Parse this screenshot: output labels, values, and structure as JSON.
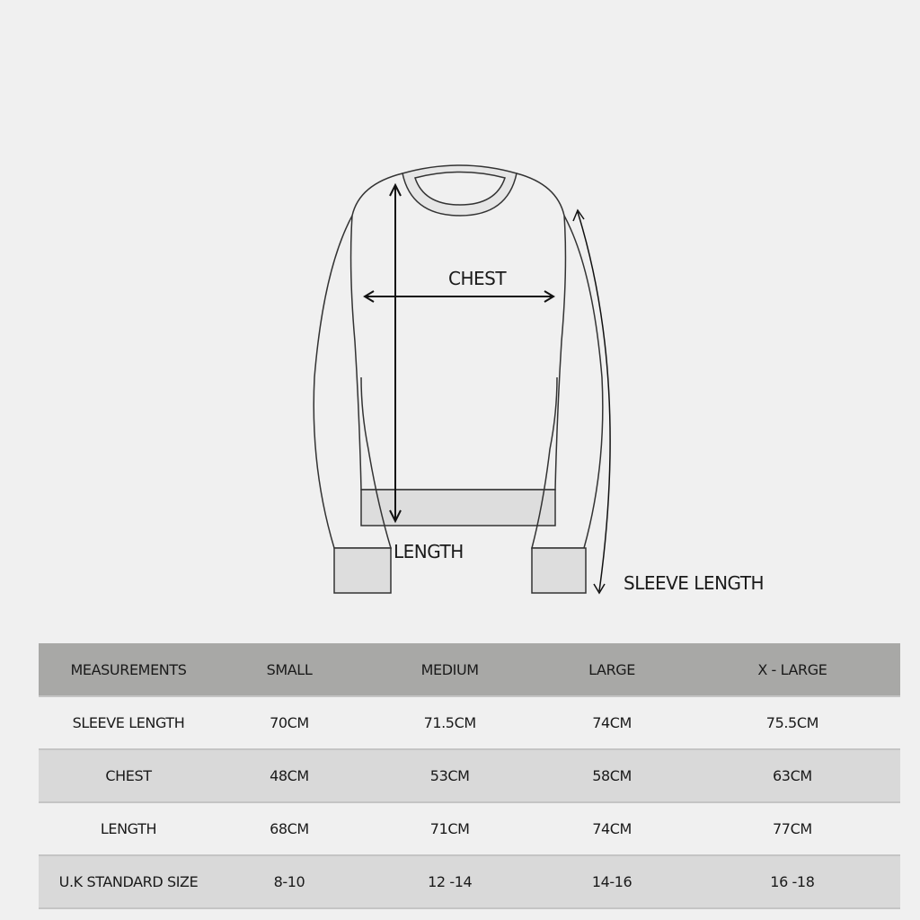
{
  "diagram": {
    "labels": {
      "chest": "CHEST",
      "length": "LENGTH",
      "sleeve_length": "SLEEVE LENGTH"
    }
  },
  "table": {
    "headers": [
      "MEASUREMENTS",
      "SMALL",
      "MEDIUM",
      "LARGE",
      "X - LARGE"
    ],
    "rows": [
      [
        "SLEEVE LENGTH",
        "70CM",
        "71.5CM",
        "74CM",
        "75.5CM"
      ],
      [
        "CHEST",
        "48CM",
        "53CM",
        "58CM",
        "63CM"
      ],
      [
        "LENGTH",
        "68CM",
        "71CM",
        "74CM",
        "77CM"
      ],
      [
        "U.K STANDARD SIZE",
        "8-10",
        "12 -14",
        "14-16",
        "16 -18"
      ]
    ],
    "colors": {
      "header": "#a8a8a6",
      "row_light": "#f0f0f0",
      "row_dark": "#d9d9d9"
    }
  }
}
